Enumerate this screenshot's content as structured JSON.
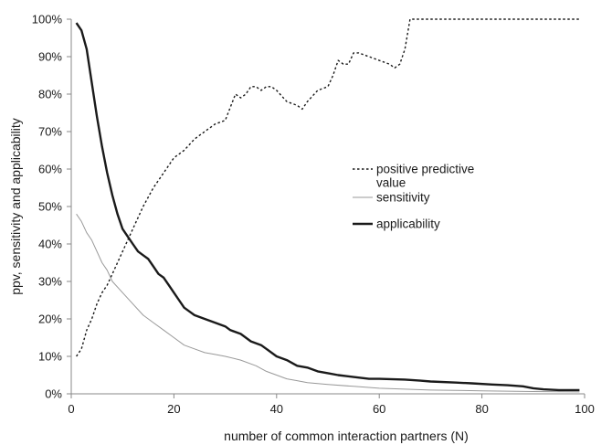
{
  "chart_data": {
    "type": "line",
    "xlabel": "number of common interaction partners (N)",
    "ylabel": "ppv, sensitivity and applicability",
    "xlim": [
      0,
      100
    ],
    "ylim": [
      0,
      100
    ],
    "x_ticks": [
      "0",
      "20",
      "40",
      "60",
      "80",
      "100"
    ],
    "y_ticks": [
      "0%",
      "10%",
      "20%",
      "30%",
      "40%",
      "50%",
      "60%",
      "70%",
      "80%",
      "90%",
      "100%"
    ],
    "grid": false,
    "legend_position": "center-right",
    "series": [
      {
        "name": "positive predictive value",
        "style": "dotted",
        "color": "#1a1a1a",
        "points": [
          [
            1,
            10
          ],
          [
            2,
            12
          ],
          [
            3,
            17
          ],
          [
            4,
            20
          ],
          [
            5,
            24
          ],
          [
            6,
            27
          ],
          [
            7,
            29
          ],
          [
            8,
            32
          ],
          [
            9,
            35
          ],
          [
            10,
            38
          ],
          [
            12,
            44
          ],
          [
            14,
            50
          ],
          [
            16,
            55
          ],
          [
            18,
            59
          ],
          [
            20,
            63
          ],
          [
            22,
            65
          ],
          [
            24,
            68
          ],
          [
            26,
            70
          ],
          [
            28,
            72
          ],
          [
            30,
            73
          ],
          [
            32,
            80
          ],
          [
            33,
            79
          ],
          [
            34,
            80
          ],
          [
            35,
            82
          ],
          [
            36,
            82
          ],
          [
            37,
            81
          ],
          [
            38,
            82
          ],
          [
            39,
            82
          ],
          [
            40,
            81
          ],
          [
            42,
            78
          ],
          [
            44,
            77
          ],
          [
            45,
            76
          ],
          [
            46,
            78
          ],
          [
            48,
            81
          ],
          [
            50,
            82
          ],
          [
            51,
            85
          ],
          [
            52,
            89
          ],
          [
            53,
            88
          ],
          [
            54,
            88
          ],
          [
            55,
            91
          ],
          [
            56,
            91
          ],
          [
            58,
            90
          ],
          [
            60,
            89
          ],
          [
            62,
            88
          ],
          [
            63,
            87
          ],
          [
            64,
            88
          ],
          [
            65,
            92
          ],
          [
            66,
            100
          ],
          [
            68,
            100
          ],
          [
            70,
            100
          ],
          [
            80,
            100
          ],
          [
            90,
            100
          ],
          [
            99,
            100
          ]
        ]
      },
      {
        "name": "sensitivity",
        "style": "thin",
        "color": "#999999",
        "points": [
          [
            1,
            48
          ],
          [
            2,
            46
          ],
          [
            3,
            43
          ],
          [
            4,
            41
          ],
          [
            5,
            38
          ],
          [
            6,
            35
          ],
          [
            7,
            33
          ],
          [
            8,
            30
          ],
          [
            10,
            27
          ],
          [
            12,
            24
          ],
          [
            14,
            21
          ],
          [
            16,
            19
          ],
          [
            18,
            17
          ],
          [
            20,
            15
          ],
          [
            22,
            13
          ],
          [
            24,
            12
          ],
          [
            26,
            11
          ],
          [
            28,
            10.5
          ],
          [
            30,
            10
          ],
          [
            33,
            9
          ],
          [
            36,
            7.5
          ],
          [
            38,
            6
          ],
          [
            40,
            5
          ],
          [
            42,
            4
          ],
          [
            44,
            3.5
          ],
          [
            46,
            3
          ],
          [
            50,
            2.5
          ],
          [
            55,
            2
          ],
          [
            60,
            1.5
          ],
          [
            70,
            1
          ],
          [
            80,
            0.8
          ],
          [
            90,
            0.6
          ],
          [
            99,
            0.5
          ]
        ]
      },
      {
        "name": "applicability",
        "style": "thick",
        "color": "#1a1a1a",
        "points": [
          [
            1,
            99
          ],
          [
            2,
            97
          ],
          [
            3,
            92
          ],
          [
            4,
            83
          ],
          [
            5,
            74
          ],
          [
            6,
            66
          ],
          [
            7,
            59
          ],
          [
            8,
            53
          ],
          [
            9,
            48
          ],
          [
            10,
            44
          ],
          [
            11,
            42
          ],
          [
            12,
            40
          ],
          [
            13,
            38
          ],
          [
            14,
            37
          ],
          [
            15,
            36
          ],
          [
            16,
            34
          ],
          [
            17,
            32
          ],
          [
            18,
            31
          ],
          [
            19,
            29
          ],
          [
            20,
            27
          ],
          [
            21,
            25
          ],
          [
            22,
            23
          ],
          [
            23,
            22
          ],
          [
            24,
            21
          ],
          [
            26,
            20
          ],
          [
            28,
            19
          ],
          [
            30,
            18
          ],
          [
            31,
            17
          ],
          [
            33,
            16
          ],
          [
            34,
            15
          ],
          [
            35,
            14
          ],
          [
            37,
            13
          ],
          [
            38,
            12
          ],
          [
            40,
            10
          ],
          [
            42,
            9
          ],
          [
            44,
            7.5
          ],
          [
            46,
            7
          ],
          [
            48,
            6
          ],
          [
            50,
            5.5
          ],
          [
            52,
            5
          ],
          [
            55,
            4.5
          ],
          [
            58,
            4
          ],
          [
            60,
            4
          ],
          [
            65,
            3.8
          ],
          [
            68,
            3.5
          ],
          [
            70,
            3.3
          ],
          [
            75,
            3
          ],
          [
            78,
            2.8
          ],
          [
            82,
            2.5
          ],
          [
            85,
            2.3
          ],
          [
            88,
            2
          ],
          [
            90,
            1.5
          ],
          [
            92,
            1.2
          ],
          [
            95,
            1
          ],
          [
            99,
            1
          ]
        ]
      }
    ],
    "legend": [
      {
        "label_lines": [
          "positive predictive",
          "value"
        ],
        "style": "dotted"
      },
      {
        "label_lines": [
          "sensitivity"
        ],
        "style": "thin"
      },
      {
        "label_lines": [
          "applicability"
        ],
        "style": "thick"
      }
    ]
  }
}
